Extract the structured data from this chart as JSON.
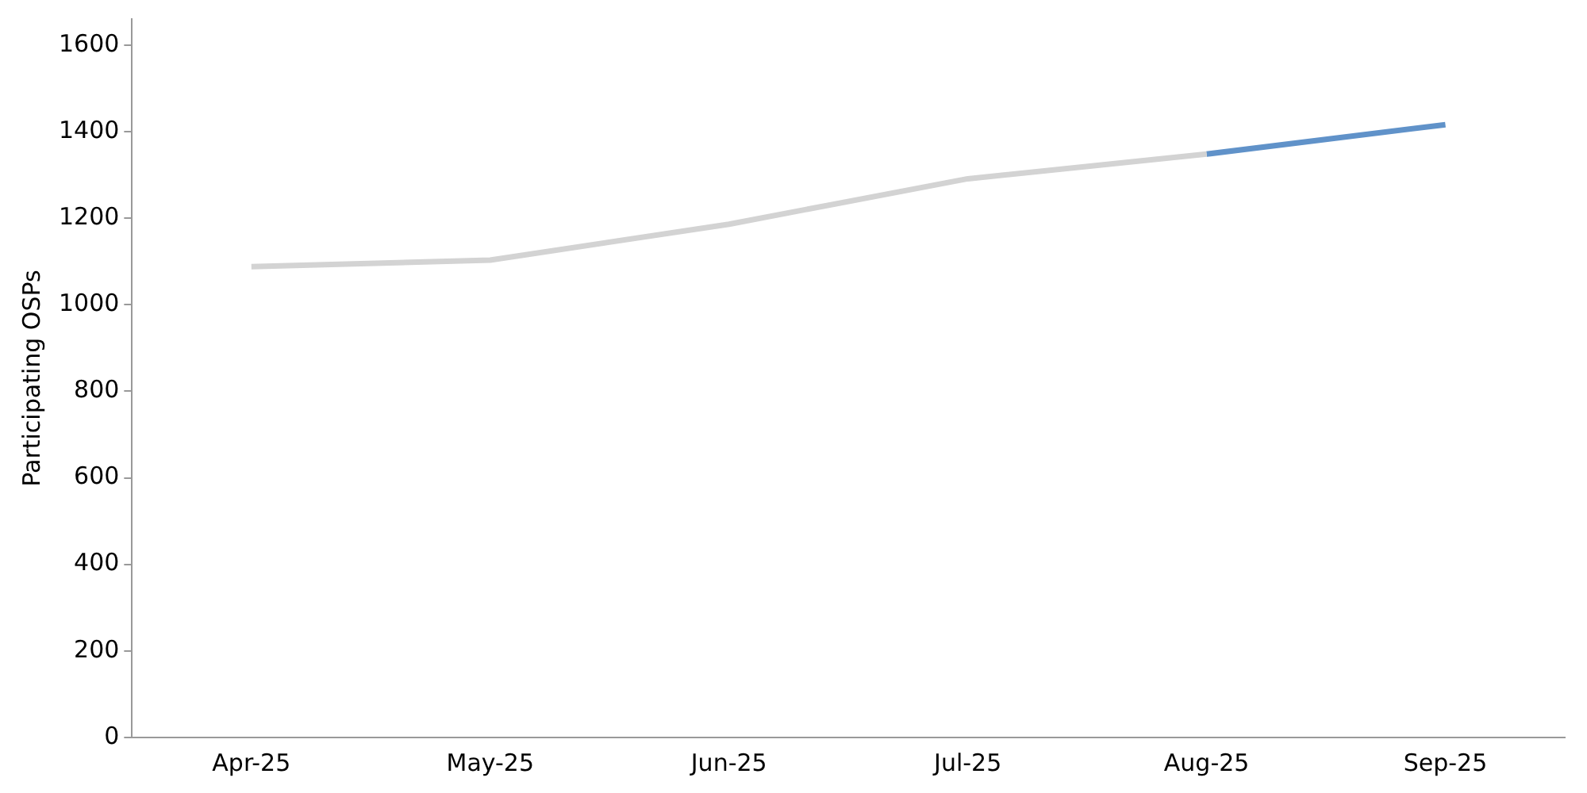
{
  "chart_data": {
    "type": "line",
    "ylabel": "Participating OSPs",
    "categories": [
      "Apr-25",
      "May-25",
      "Jun-25",
      "Jul-25",
      "Aug-25",
      "Sep-25"
    ],
    "series": [
      {
        "color": "#d3d3d3",
        "values": [
          1088,
          1103,
          1186,
          1291,
          1348,
          null
        ]
      },
      {
        "color": "#6092c9",
        "values": [
          null,
          null,
          null,
          null,
          1348,
          1416
        ]
      }
    ],
    "ylim": [
      0,
      1660
    ],
    "yticks": [
      0,
      200,
      400,
      600,
      800,
      1000,
      1200,
      1400,
      1600
    ],
    "grid": false,
    "legend": false,
    "marker": "none",
    "line_style": "solid"
  }
}
